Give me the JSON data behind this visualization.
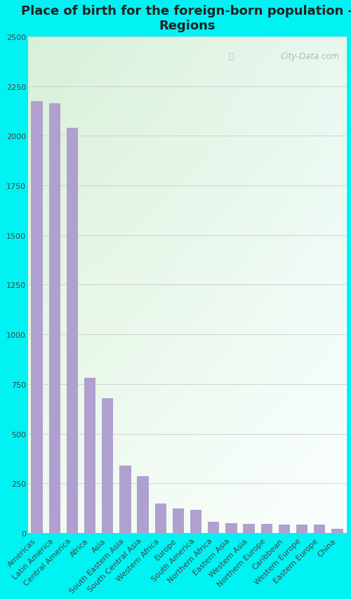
{
  "title": "Place of birth for the foreign-born population -\nRegions",
  "categories": [
    "Americas",
    "Latin America",
    "Central America",
    "Africa",
    "Asia",
    "South Eastern Asia",
    "South Central Asia",
    "Western Africa",
    "Europe",
    "South America",
    "Northern Africa",
    "Eastern Asia",
    "Western Asia",
    "Northern Europe",
    "Caribbean",
    "Western Europe",
    "Eastern Europe",
    "China"
  ],
  "values": [
    2175,
    2165,
    2040,
    780,
    680,
    340,
    285,
    150,
    125,
    115,
    55,
    48,
    45,
    45,
    44,
    43,
    42,
    20
  ],
  "bar_color": "#b0a0d0",
  "fig_bg_color": "#00f2f2",
  "plot_bg_color_tl": "#d8f0d8",
  "plot_bg_color_tr": "#e8f8f0",
  "plot_bg_color_bl": "#f0faf0",
  "plot_bg_color_br": "#fafffe",
  "title_color": "#222222",
  "tick_color": "#444444",
  "grid_color": "#cccccc",
  "ylim": [
    0,
    2500
  ],
  "yticks": [
    0,
    250,
    500,
    750,
    1000,
    1250,
    1500,
    1750,
    2000,
    2250,
    2500
  ],
  "watermark": "City-Data.com",
  "title_fontsize": 13,
  "tick_fontsize": 8,
  "bar_width": 0.65
}
